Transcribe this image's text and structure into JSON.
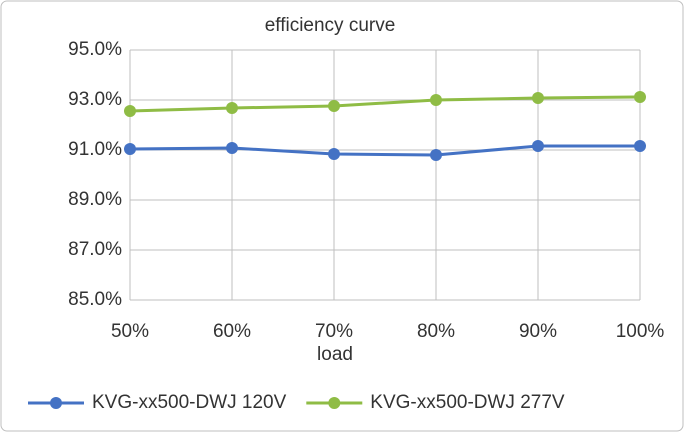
{
  "chart_data": {
    "type": "line",
    "title": "efficiency curve",
    "x_label": "load",
    "categories": [
      "50%",
      "60%",
      "70%",
      "80%",
      "90%",
      "100%"
    ],
    "series": [
      {
        "name": "KVG-xx500-DWJ 120V",
        "color": "#4472c4",
        "values": [
          91.04,
          91.08,
          90.84,
          90.8,
          91.16,
          91.16
        ]
      },
      {
        "name": "KVG-xx500-DWJ 277V",
        "color": "#8fbc45",
        "values": [
          92.56,
          92.68,
          92.76,
          93.0,
          93.08,
          93.12
        ]
      }
    ],
    "ylim": [
      85,
      95
    ],
    "yticks": [
      {
        "value": 85,
        "label": "85.0%"
      },
      {
        "value": 87,
        "label": "87.0%"
      },
      {
        "value": 89,
        "label": "89.0%"
      },
      {
        "value": 91,
        "label": "91.0%"
      },
      {
        "value": 93,
        "label": "93.0%"
      },
      {
        "value": 95,
        "label": "95.0%"
      }
    ],
    "grid": true,
    "legend": "bottom"
  }
}
